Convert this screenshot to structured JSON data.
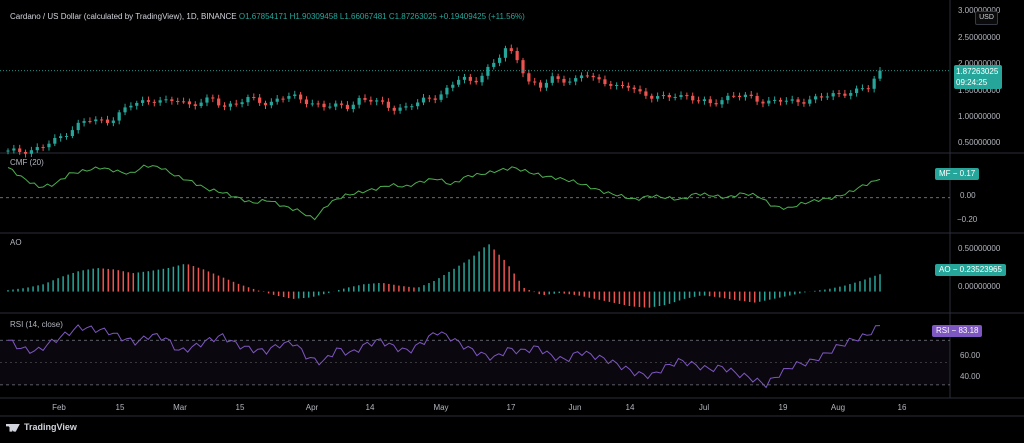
{
  "header": {
    "symbol": "Cardano / US Dollar (calculated by TradingView), 1D, BINANCE",
    "open": "O1.67854171",
    "high": "H1.90309458",
    "low": "L1.66067481",
    "close": "C1.87263025",
    "change": "+0.19409425 (+11.56%)"
  },
  "currency_button": "USD",
  "price_tag": {
    "price": "1.87263025",
    "countdown": "09:24:25"
  },
  "indicators": {
    "cmf": {
      "label": "CMF (20)",
      "value_tag": "MF − 0.17"
    },
    "ao": {
      "label": "AO",
      "value_tag": "AO − 0.23523965"
    },
    "rsi": {
      "label": "RSI (14, close)",
      "value_tag": "RSI − 83.18"
    }
  },
  "time_axis": [
    "Feb",
    "15",
    "Mar",
    "15",
    "Apr",
    "14",
    "May",
    "17",
    "Jun",
    "14",
    "Jul",
    "19",
    "Aug",
    "16"
  ],
  "price_axis": [
    "3.00000000",
    "2.50000000",
    "2.00000000",
    "1.50000000",
    "1.00000000",
    "0.50000000"
  ],
  "cmf_axis": [
    "0.00",
    "−0.20"
  ],
  "ao_axis": [
    "0.50000000",
    "0.00000000"
  ],
  "rsi_axis": [
    "60.00",
    "40.00"
  ],
  "brand": "TradingView",
  "colors": {
    "up": "#26a69a",
    "down": "#ef5350",
    "cmf": "#4caf50",
    "rsi": "#7e57c2",
    "price_line": "#26a69a"
  },
  "chart_data": [
    {
      "type": "candlestick",
      "title": "Cardano / US Dollar (calculated by TradingView), 1D, BINANCE",
      "x_range": [
        "2021-01-23",
        "2021-08-11"
      ],
      "ylim": [
        0.4,
        3.0
      ],
      "close_series": [
        0.36,
        0.38,
        0.4,
        0.45,
        0.55,
        0.7,
        0.85,
        0.95,
        0.93,
        0.96,
        1.1,
        1.25,
        1.3,
        1.35,
        1.28,
        1.32,
        1.25,
        1.3,
        1.33,
        1.2,
        1.28,
        1.35,
        1.3,
        1.25,
        1.4,
        1.38,
        1.32,
        1.27,
        1.22,
        1.2,
        1.21,
        1.35,
        1.32,
        1.25,
        1.19,
        1.18,
        1.25,
        1.35,
        1.42,
        1.55,
        1.75,
        1.65,
        1.85,
        2.0,
        2.3,
        2.1,
        1.65,
        1.55,
        1.75,
        1.72,
        1.65,
        1.82,
        1.72,
        1.65,
        1.52,
        1.6,
        1.45,
        1.38,
        1.35,
        1.44,
        1.4,
        1.3,
        1.25,
        1.35,
        1.42,
        1.38,
        1.35,
        1.3,
        1.32,
        1.28,
        1.32,
        1.35,
        1.38,
        1.42,
        1.48,
        1.5,
        1.55,
        1.87
      ],
      "current": 1.87263025
    },
    {
      "type": "line",
      "title": "CMF (20)",
      "ylim": [
        -0.3,
        0.35
      ],
      "values": [
        0.28,
        0.18,
        0.1,
        0.12,
        0.22,
        0.25,
        0.28,
        0.25,
        0.22,
        0.3,
        0.28,
        0.2,
        0.15,
        0.08,
        0.05,
        0.0,
        -0.05,
        -0.02,
        -0.08,
        -0.12,
        -0.2,
        -0.05,
        0.02,
        0.05,
        0.08,
        0.12,
        0.1,
        0.15,
        0.18,
        0.12,
        0.2,
        0.22,
        0.25,
        0.28,
        0.24,
        0.2,
        0.18,
        0.15,
        0.1,
        0.05,
        0.02,
        -0.02,
        0.02,
        0.0,
        -0.02,
        0.04,
        0.02,
        0.0,
        0.04,
        0.02,
        -0.08,
        -0.1,
        -0.05,
        -0.02,
        0.0,
        0.05,
        0.12,
        0.17
      ],
      "current": 0.17
    },
    {
      "type": "histogram",
      "title": "AO",
      "ylim": [
        -0.25,
        0.7
      ],
      "values": [
        0.02,
        0.05,
        0.1,
        0.2,
        0.28,
        0.32,
        0.3,
        0.25,
        0.28,
        0.32,
        0.38,
        0.3,
        0.2,
        0.1,
        0.02,
        -0.05,
        -0.1,
        -0.08,
        -0.02,
        0.05,
        0.1,
        0.12,
        0.08,
        0.05,
        0.15,
        0.3,
        0.45,
        0.65,
        0.4,
        0.05,
        -0.05,
        -0.02,
        -0.05,
        -0.1,
        -0.15,
        -0.2,
        -0.22,
        -0.18,
        -0.1,
        -0.05,
        -0.08,
        -0.12,
        -0.15,
        -0.1,
        -0.05,
        0.0,
        0.03,
        0.08,
        0.15,
        0.24
      ],
      "current": 0.23523965
    },
    {
      "type": "line",
      "title": "RSI (14, close)",
      "ylim": [
        20,
        90
      ],
      "levels": [
        70,
        30
      ],
      "values": [
        70,
        62,
        60,
        68,
        75,
        82,
        80,
        78,
        72,
        68,
        75,
        72,
        60,
        64,
        70,
        74,
        66,
        62,
        60,
        66,
        68,
        54,
        50,
        62,
        58,
        66,
        70,
        64,
        60,
        68,
        78,
        72,
        64,
        58,
        54,
        62,
        60,
        64,
        56,
        52,
        60,
        56,
        52,
        46,
        40,
        38,
        46,
        52,
        48,
        44,
        46,
        40,
        36,
        30,
        40,
        48,
        50,
        56,
        64,
        70,
        74,
        83.18
      ],
      "current": 83.18
    }
  ]
}
